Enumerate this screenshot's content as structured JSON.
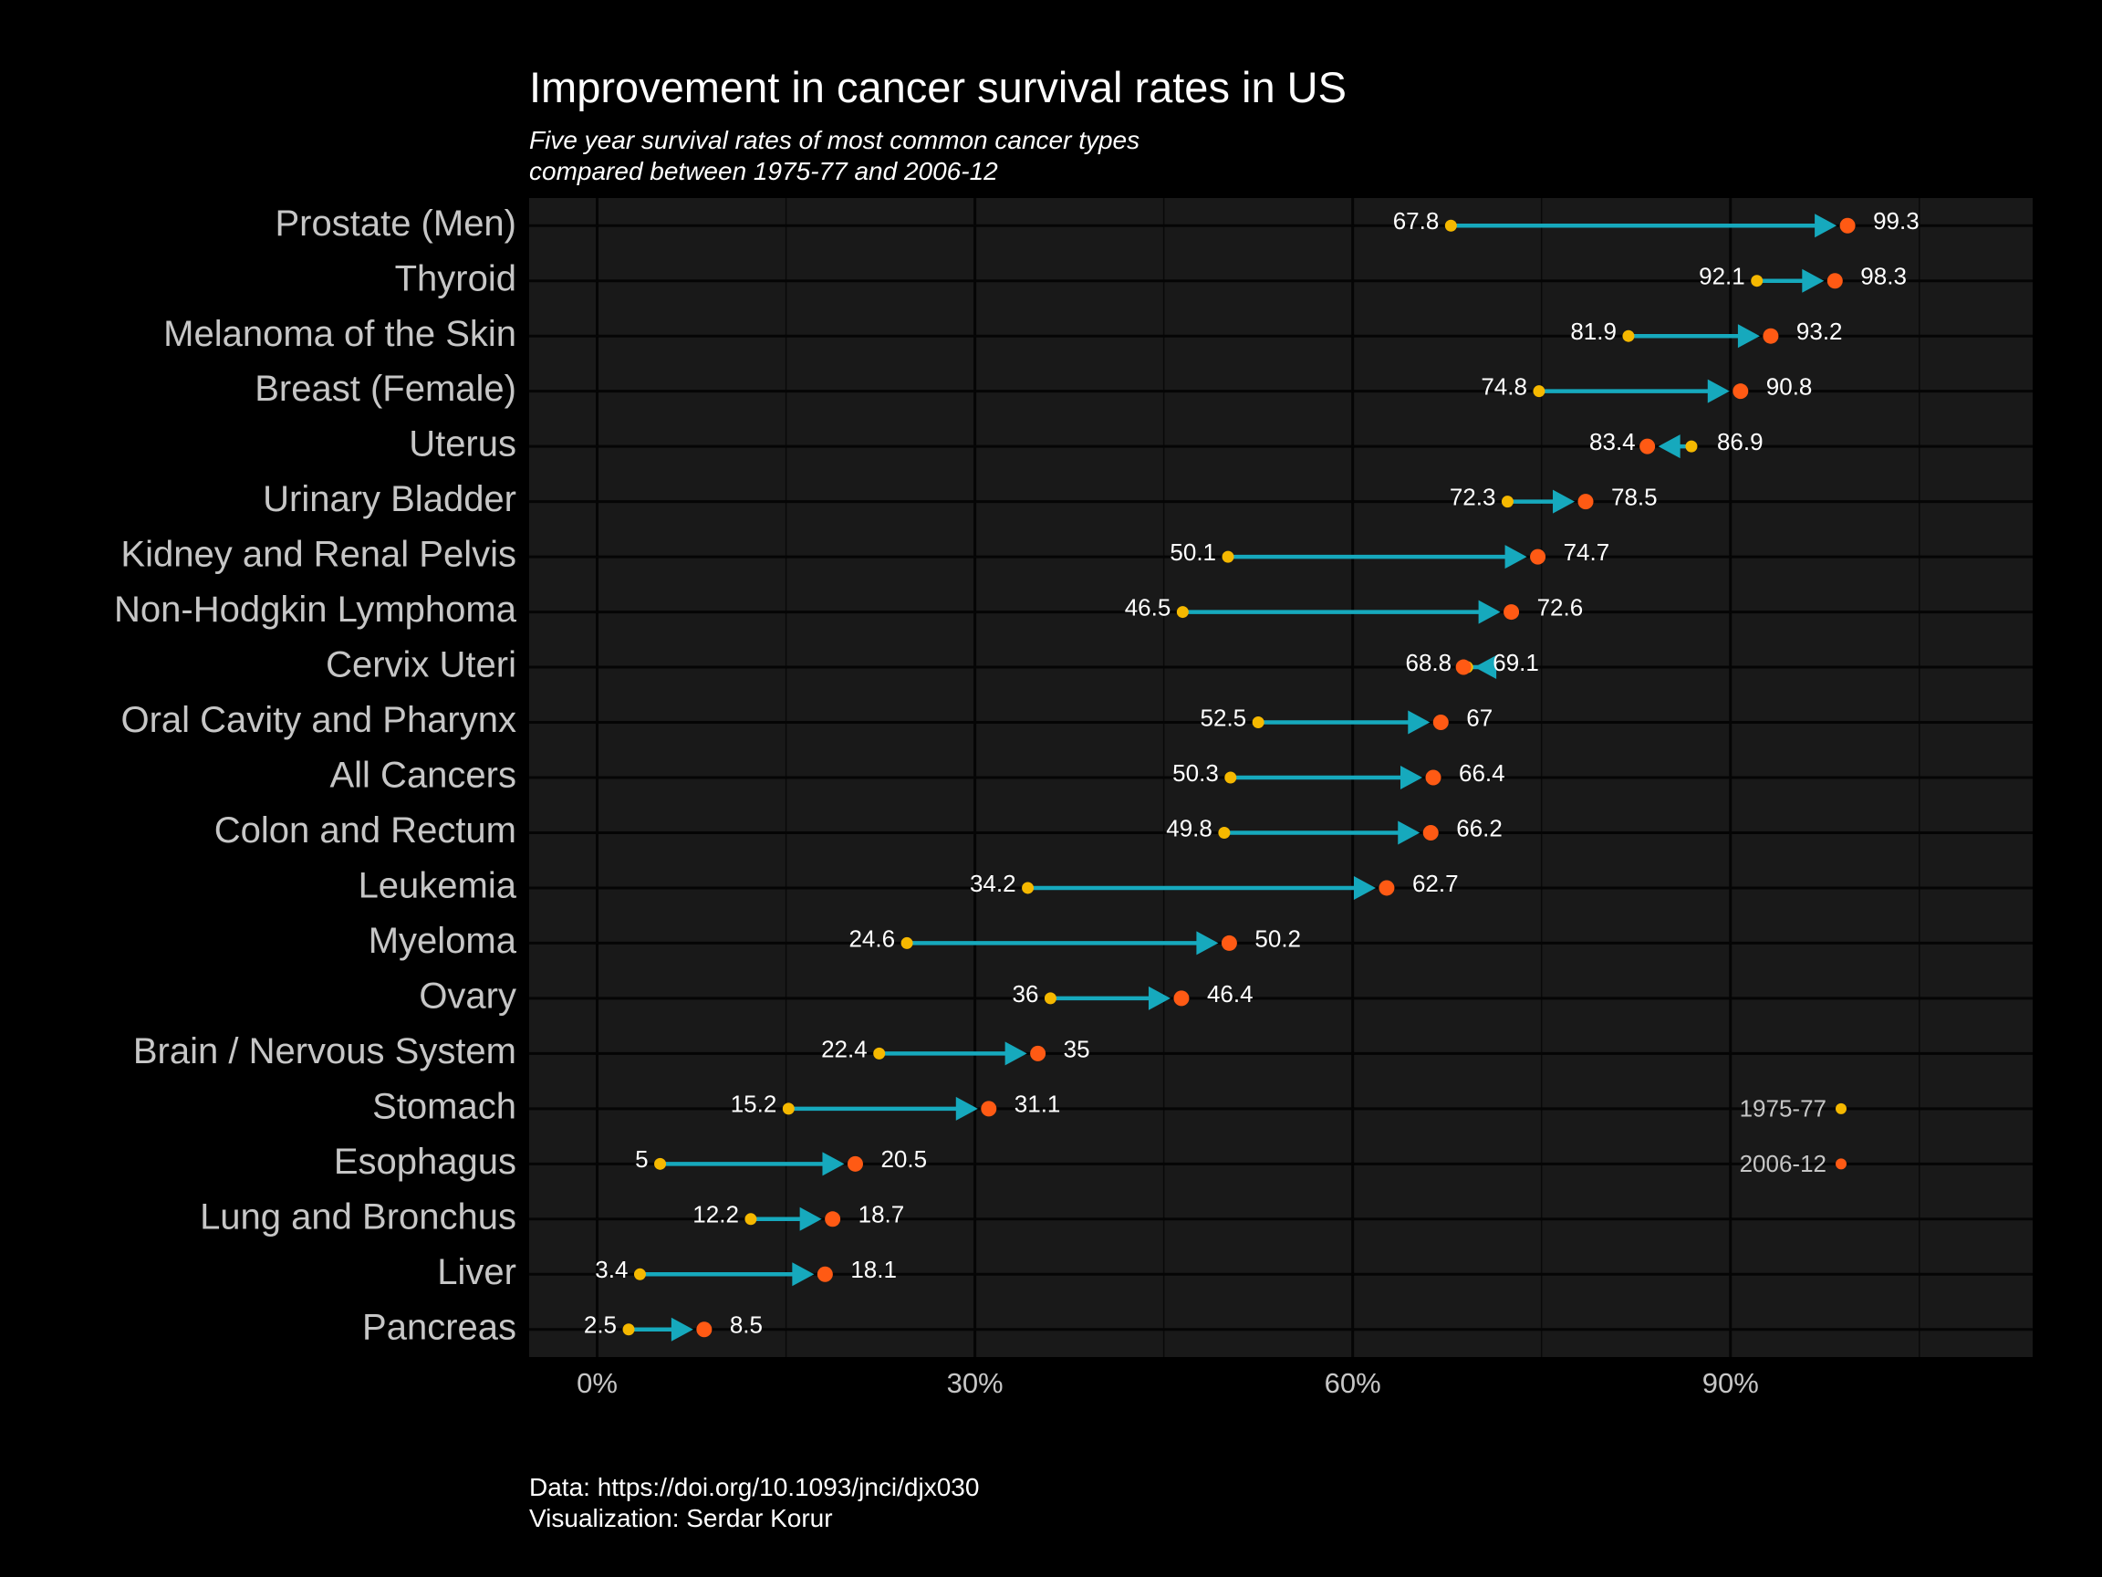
{
  "chart_data": {
    "type": "dumbbell",
    "title": "Improvement in cancer survival rates in US",
    "subtitle": [
      "Five year survival rates of most common cancer types",
      "compared between 1975-77 and 2006-12"
    ],
    "caption": [
      "Data: https://doi.org/10.1093/jnci/djx030",
      "Visualization: Serdar Korur"
    ],
    "xlabel": "",
    "ylabel": "",
    "xlim": [
      -5.4,
      114
    ],
    "xticks": [
      0,
      30,
      60,
      90
    ],
    "xtick_labels": [
      "0%",
      "30%",
      "60%",
      "90%"
    ],
    "grid": true,
    "legend_position": "inside-right",
    "legend": [
      {
        "label": "1975-77",
        "color": "#f5b800"
      },
      {
        "label": "2006-12",
        "color": "#ff5a14"
      }
    ],
    "colors": {
      "period1": "#f5b800",
      "period2": "#ff5a14",
      "arrow": "#16a9bd",
      "panel": "#191919",
      "background": "#000000",
      "category_text": "#c6c6c6"
    },
    "series_names": [
      "1975-77",
      "2006-12"
    ],
    "categories": [
      "Prostate (Men)",
      "Thyroid",
      "Melanoma of the Skin",
      "Breast (Female)",
      "Uterus",
      "Urinary Bladder",
      "Kidney and Renal Pelvis",
      "Non-Hodgkin Lymphoma",
      "Cervix Uteri",
      "Oral Cavity and Pharynx",
      "All Cancers",
      "Colon and Rectum",
      "Leukemia",
      "Myeloma",
      "Ovary",
      "Brain / Nervous System",
      "Stomach",
      "Esophagus",
      "Lung and Bronchus",
      "Liver",
      "Pancreas"
    ],
    "start": [
      67.8,
      92.1,
      81.9,
      74.8,
      86.9,
      72.3,
      50.1,
      46.5,
      69.1,
      52.5,
      50.3,
      49.8,
      34.2,
      24.6,
      36,
      22.4,
      15.2,
      5,
      12.2,
      3.4,
      2.5
    ],
    "end": [
      99.3,
      98.3,
      93.2,
      90.8,
      83.4,
      78.5,
      74.7,
      72.6,
      68.8,
      67,
      66.4,
      66.2,
      62.7,
      50.2,
      46.4,
      35,
      31.1,
      20.5,
      18.7,
      18.1,
      8.5
    ],
    "start_labels": [
      "67.8",
      "92.1",
      "81.9",
      "74.8",
      "86.9",
      "72.3",
      "50.1",
      "46.5",
      "69.1",
      "52.5",
      "50.3",
      "49.8",
      "34.2",
      "24.6",
      "36",
      "22.4",
      "15.2",
      "5",
      "12.2",
      "3.4",
      "2.5"
    ],
    "end_labels": [
      "99.3",
      "98.3",
      "93.2",
      "90.8",
      "83.4",
      "78.5",
      "74.7",
      "72.6",
      "68.8",
      "67",
      "66.4",
      "66.2",
      "62.7",
      "50.2",
      "46.4",
      "35",
      "31.1",
      "20.5",
      "18.7",
      "18.1",
      "8.5"
    ]
  }
}
